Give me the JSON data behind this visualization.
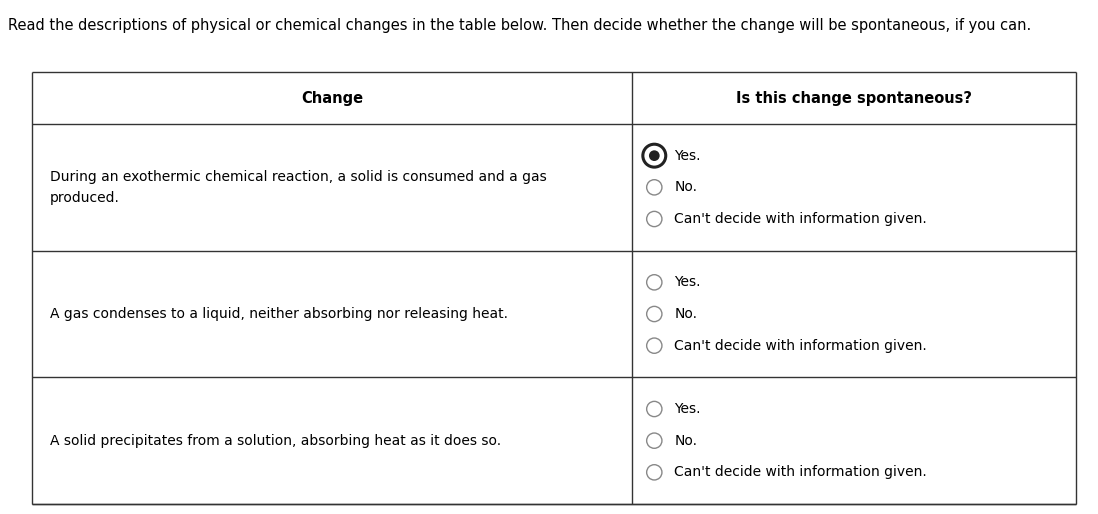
{
  "title_text": "Read the descriptions of physical or chemical changes in the table below. Then decide whether the change will be spontaneous, if you can.",
  "title_fontsize": 10.5,
  "col1_header": "Change",
  "col2_header": "Is this change spontaneous?",
  "header_fontsize": 10.5,
  "body_fontsize": 10.0,
  "rows": [
    {
      "change_text": "During an exothermic chemical reaction, a solid is consumed and a gas\nproduced.",
      "options": [
        "Yes.",
        "No.",
        "Can't decide with information given."
      ],
      "selected": 0
    },
    {
      "change_text": "A gas condenses to a liquid, neither absorbing nor releasing heat.",
      "options": [
        "Yes.",
        "No.",
        "Can't decide with information given."
      ],
      "selected": -1
    },
    {
      "change_text": "A solid precipitates from a solution, absorbing heat as it does so.",
      "options": [
        "Yes.",
        "No.",
        "Can't decide with information given."
      ],
      "selected": -1
    }
  ],
  "background_color": "#ffffff",
  "border_color": "#333333",
  "text_color": "#000000",
  "radio_normal_edge": "#888888",
  "radio_selected_edge": "#222222",
  "fig_width": 10.98,
  "fig_height": 5.14,
  "dpi": 100
}
